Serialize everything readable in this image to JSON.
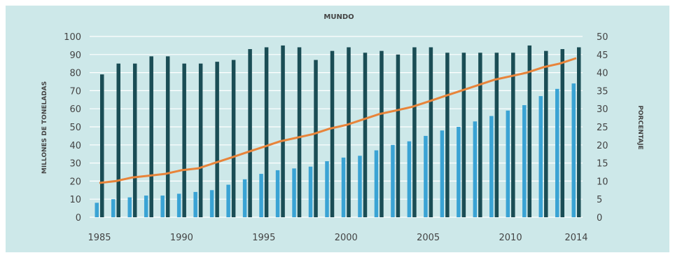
{
  "chart_data": {
    "type": "bar",
    "title": "MUNDO",
    "ylabel_left": "MILLONES DE TONELADAS",
    "ylabel_right": "PORCENTAJE",
    "x_tick_labels": [
      "1985",
      "1990",
      "1995",
      "2000",
      "2005",
      "2010",
      "2014"
    ],
    "x": [
      1985,
      1986,
      1987,
      1988,
      1989,
      1990,
      1991,
      1992,
      1993,
      1994,
      1995,
      1996,
      1997,
      1998,
      1999,
      2000,
      2001,
      2002,
      2003,
      2004,
      2005,
      2006,
      2007,
      2008,
      2009,
      2010,
      2011,
      2012,
      2013,
      2014
    ],
    "ylim_left": [
      0,
      100
    ],
    "yticks_left": [
      0,
      10,
      20,
      30,
      40,
      50,
      60,
      70,
      80,
      90,
      100
    ],
    "ylim_right": [
      0,
      50
    ],
    "yticks_right": [
      0,
      5,
      10,
      15,
      20,
      25,
      30,
      35,
      40,
      45,
      50
    ],
    "grid": true,
    "series": [
      {
        "type": "bar",
        "axis": "left",
        "color": "#1a4d55",
        "values": [
          79,
          85,
          85,
          89,
          89,
          85,
          85,
          86,
          87,
          93,
          94,
          95,
          94,
          87,
          92,
          94,
          91,
          92,
          90,
          94,
          94,
          91,
          91,
          91,
          91,
          91,
          95,
          92,
          93,
          94
        ]
      },
      {
        "type": "bar",
        "axis": "left",
        "color": "#3aa3d4",
        "values": [
          8,
          10,
          11,
          12,
          12,
          13,
          14,
          15,
          18,
          21,
          24,
          26,
          27,
          28,
          31,
          33,
          34,
          37,
          40,
          42,
          45,
          48,
          50,
          53,
          56,
          59,
          62,
          67,
          71,
          74
        ]
      },
      {
        "type": "line",
        "axis": "right",
        "color": "#e8843a",
        "values": [
          9.5,
          10,
          11,
          11.5,
          12,
          13,
          13.5,
          15,
          16.5,
          18,
          19.5,
          21,
          22,
          23,
          24.5,
          25.5,
          27,
          28.5,
          29.5,
          30.5,
          32,
          33.5,
          35,
          36.5,
          38,
          39,
          40,
          41.5,
          42.5,
          44
        ]
      }
    ]
  },
  "colors": {
    "panel_background": "#cde8e9",
    "grid": "#ffffff",
    "text": "#444444"
  }
}
